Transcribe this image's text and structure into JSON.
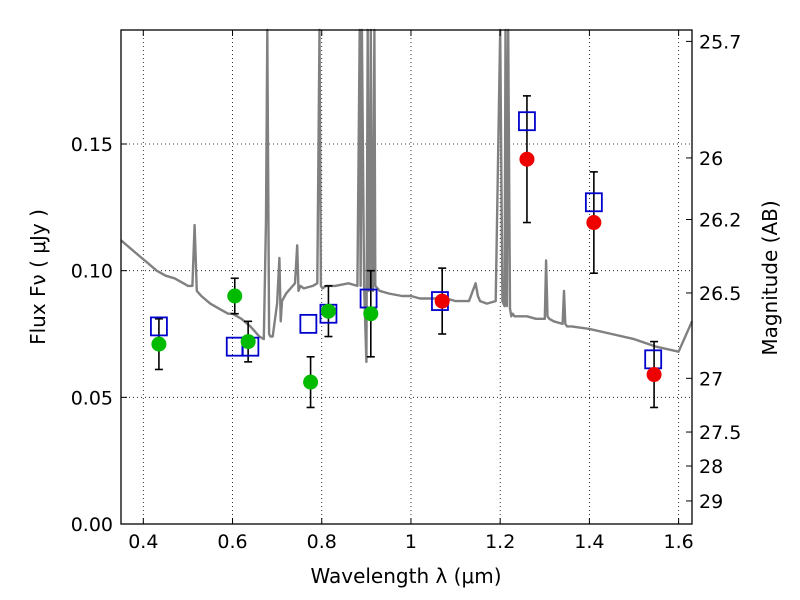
{
  "chart_data": {
    "type": "scatter",
    "xlabel": "Wavelength λ (μm)",
    "ylabel": "Flux Fν ( μJy )",
    "ylabel_right": "Magnitude (AB)",
    "xlim": [
      0.35,
      1.63
    ],
    "ylim": [
      0.0,
      0.195
    ],
    "grid": true,
    "x_ticks": [
      0.4,
      0.6,
      0.8,
      1.0,
      1.2,
      1.4,
      1.6
    ],
    "x_tick_labels": [
      "0.4",
      "0.6",
      "0.8",
      "1",
      "1.2",
      "1.4",
      "1.6"
    ],
    "y_ticks": [
      0.0,
      0.05,
      0.1,
      0.15
    ],
    "y_tick_labels": [
      "0.00",
      "0.05",
      "0.10",
      "0.15"
    ],
    "right_ticks": [
      {
        "label": "25.7",
        "flux": 0.1905
      },
      {
        "label": "26",
        "flux": 0.1445
      },
      {
        "label": "26.2",
        "flux": 0.1202
      },
      {
        "label": "26.5",
        "flux": 0.0912
      },
      {
        "label": "27",
        "flux": 0.0575
      },
      {
        "label": "27.5",
        "flux": 0.0363
      },
      {
        "label": "28",
        "flux": 0.0229
      },
      {
        "label": "29",
        "flux": 0.0091
      }
    ],
    "colors": {
      "model": "#808080",
      "green_points": "#00bb00",
      "red_points": "#ee0000",
      "squares": "#0000cc",
      "errorbars": "#000000"
    },
    "series": [
      {
        "marker": "line",
        "x": [
          0.35,
          0.37,
          0.39,
          0.41,
          0.43,
          0.45,
          0.47,
          0.49,
          0.5,
          0.51,
          0.515,
          0.52,
          0.53,
          0.55,
          0.57,
          0.59,
          0.6,
          0.62,
          0.64,
          0.66,
          0.67,
          0.675,
          0.678,
          0.682,
          0.685,
          0.69,
          0.7,
          0.705,
          0.708,
          0.711,
          0.72,
          0.74,
          0.745,
          0.748,
          0.752,
          0.76,
          0.78,
          0.79,
          0.795,
          0.798,
          0.802,
          0.81,
          0.83,
          0.86,
          0.88,
          0.885,
          0.887,
          0.89,
          0.895,
          0.9,
          0.903,
          0.905,
          0.907,
          0.91,
          0.913,
          0.915,
          0.918,
          0.92,
          0.925,
          0.93,
          0.95,
          0.98,
          1.0,
          1.02,
          1.05,
          1.08,
          1.1,
          1.13,
          1.145,
          1.15,
          1.155,
          1.17,
          1.19,
          1.2,
          1.205,
          1.21,
          1.212,
          1.215,
          1.218,
          1.222,
          1.225,
          1.228,
          1.232,
          1.24,
          1.26,
          1.28,
          1.3,
          1.303,
          1.306,
          1.31,
          1.32,
          1.34,
          1.343,
          1.346,
          1.35,
          1.36,
          1.4,
          1.45,
          1.5,
          1.55,
          1.6,
          1.63
        ],
        "y": [
          0.112,
          0.109,
          0.106,
          0.103,
          0.1,
          0.098,
          0.097,
          0.095,
          0.094,
          0.094,
          0.118,
          0.092,
          0.09,
          0.087,
          0.085,
          0.083,
          0.083,
          0.081,
          0.078,
          0.074,
          0.073,
          0.12,
          0.195,
          0.075,
          0.074,
          0.074,
          0.087,
          0.105,
          0.08,
          0.088,
          0.091,
          0.095,
          0.11,
          0.092,
          0.094,
          0.093,
          0.094,
          0.095,
          0.195,
          0.094,
          0.093,
          0.094,
          0.094,
          0.095,
          0.094,
          0.195,
          0.094,
          0.195,
          0.094,
          0.064,
          0.195,
          0.092,
          0.093,
          0.195,
          0.093,
          0.092,
          0.195,
          0.094,
          0.093,
          0.092,
          0.091,
          0.09,
          0.09,
          0.089,
          0.089,
          0.089,
          0.088,
          0.088,
          0.095,
          0.09,
          0.088,
          0.087,
          0.088,
          0.195,
          0.088,
          0.086,
          0.195,
          0.086,
          0.195,
          0.085,
          0.082,
          0.083,
          0.082,
          0.082,
          0.082,
          0.081,
          0.081,
          0.104,
          0.082,
          0.081,
          0.08,
          0.079,
          0.092,
          0.079,
          0.078,
          0.078,
          0.077,
          0.075,
          0.073,
          0.07,
          0.068,
          0.08
        ]
      },
      {
        "marker": "circle-green",
        "x": [
          0.435,
          0.605,
          0.635,
          0.775,
          0.815,
          0.91
        ],
        "y": [
          0.071,
          0.09,
          0.072,
          0.056,
          0.084,
          0.083
        ],
        "err": [
          0.01,
          0.007,
          0.008,
          0.01,
          0.01,
          0.017
        ]
      },
      {
        "marker": "circle-red",
        "x": [
          1.07,
          1.26,
          1.41,
          1.545
        ],
        "y": [
          0.088,
          0.144,
          0.119,
          0.059
        ],
        "err": [
          0.013,
          0.025,
          0.02,
          0.013
        ]
      },
      {
        "marker": "square-open",
        "x": [
          0.435,
          0.605,
          0.64,
          0.77,
          0.815,
          0.905,
          1.065,
          1.26,
          1.41,
          1.543
        ],
        "y": [
          0.078,
          0.07,
          0.07,
          0.079,
          0.083,
          0.089,
          0.088,
          0.159,
          0.127,
          0.065
        ]
      }
    ]
  }
}
